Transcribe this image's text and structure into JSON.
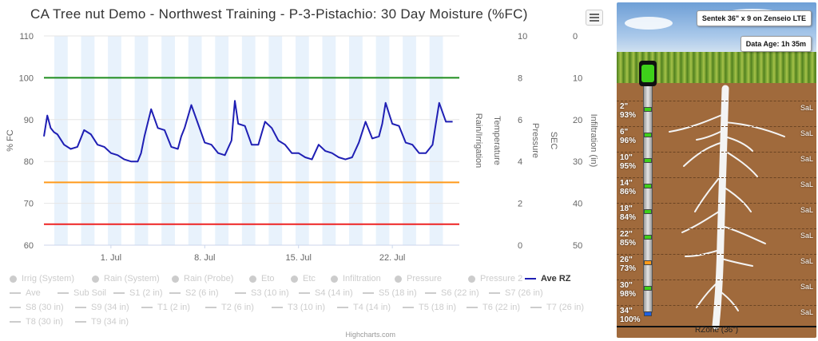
{
  "title": "CA Tree nut Demo - Northwest Training - P-3-Pistachio: 30 Day Moisture (%FC)",
  "credits": "Highcharts.com",
  "chart_data": {
    "type": "line",
    "title": "CA Tree nut Demo - Northwest Training - P-3-Pistachio: 30 Day Moisture (%FC)",
    "x_axis": {
      "type": "datetime",
      "tick_labels": [
        "1. Jul",
        "8. Jul",
        "15. Jul",
        "22. Jul"
      ],
      "tick_dates": [
        "2019-07-01",
        "2019-07-08",
        "2019-07-15",
        "2019-07-22"
      ],
      "range": [
        "2019-06-26",
        "2019-07-27"
      ]
    },
    "y_axes": [
      {
        "label": "% FC",
        "ticks": [
          60,
          70,
          80,
          90,
          100,
          110
        ],
        "range": [
          60,
          110
        ]
      },
      {
        "label": "Rain/Irrigation",
        "ticks": [
          0,
          2,
          4,
          6,
          8,
          10
        ],
        "range": [
          0,
          10
        ]
      },
      {
        "label": "Temperature",
        "ticks": [],
        "range": null
      },
      {
        "label": "Pressure",
        "ticks": [],
        "range": null
      },
      {
        "label": "SEC",
        "ticks": [],
        "range": null
      },
      {
        "label": "Infiltration (in)",
        "ticks": [
          0,
          10,
          20,
          30,
          40,
          50
        ],
        "range": [
          0,
          50
        ],
        "reversed": true
      }
    ],
    "plot_lines": [
      {
        "value": 100,
        "color": "#1e8c1e"
      },
      {
        "value": 75,
        "color": "#ff9a1a"
      },
      {
        "value": 65,
        "color": "#ee2222"
      }
    ],
    "series": [
      {
        "name": "Ave RZ",
        "color": "#1f1fb4",
        "x": [
          "2019-06-26 00:00",
          "2019-06-26 06:00",
          "2019-06-26 12:00",
          "2019-06-26 18:00",
          "2019-06-27 00:00",
          "2019-06-27 12:00",
          "2019-06-28 00:00",
          "2019-06-28 12:00",
          "2019-06-29 00:00",
          "2019-06-29 12:00",
          "2019-06-30 00:00",
          "2019-06-30 12:00",
          "2019-07-01 00:00",
          "2019-07-01 12:00",
          "2019-07-02 00:00",
          "2019-07-02 12:00",
          "2019-07-03 00:00",
          "2019-07-03 06:00",
          "2019-07-03 12:00",
          "2019-07-04 00:00",
          "2019-07-04 12:00",
          "2019-07-05 00:00",
          "2019-07-05 12:00",
          "2019-07-06 00:00",
          "2019-07-06 06:00",
          "2019-07-06 12:00",
          "2019-07-07 00:00",
          "2019-07-07 12:00",
          "2019-07-08 00:00",
          "2019-07-08 12:00",
          "2019-07-09 00:00",
          "2019-07-09 12:00",
          "2019-07-10 00:00",
          "2019-07-10 06:00",
          "2019-07-10 12:00",
          "2019-07-11 00:00",
          "2019-07-11 12:00",
          "2019-07-12 00:00",
          "2019-07-12 12:00",
          "2019-07-13 00:00",
          "2019-07-13 12:00",
          "2019-07-14 00:00",
          "2019-07-14 12:00",
          "2019-07-15 00:00",
          "2019-07-15 12:00",
          "2019-07-16 00:00",
          "2019-07-16 12:00",
          "2019-07-17 00:00",
          "2019-07-17 12:00",
          "2019-07-18 00:00",
          "2019-07-18 12:00",
          "2019-07-19 00:00",
          "2019-07-19 12:00",
          "2019-07-20 00:00",
          "2019-07-20 12:00",
          "2019-07-21 00:00",
          "2019-07-21 06:00",
          "2019-07-21 12:00",
          "2019-07-22 00:00",
          "2019-07-22 12:00",
          "2019-07-23 00:00",
          "2019-07-23 12:00",
          "2019-07-24 00:00",
          "2019-07-24 12:00",
          "2019-07-25 00:00",
          "2019-07-25 06:00",
          "2019-07-25 12:00",
          "2019-07-26 00:00",
          "2019-07-26 12:00"
        ],
        "y": [
          86,
          91,
          88,
          87,
          86.5,
          84,
          83,
          83.5,
          87.5,
          86.5,
          84,
          83.5,
          82,
          81.5,
          80.5,
          80,
          80,
          82,
          86,
          92.5,
          88,
          87.5,
          83.5,
          83,
          86,
          88,
          93.5,
          89,
          84.5,
          84,
          82,
          81.5,
          85,
          94.5,
          89,
          88.5,
          84,
          84,
          89.5,
          88,
          85,
          84,
          82,
          82,
          81,
          80.5,
          84,
          82.5,
          82,
          81,
          80.5,
          81,
          84.5,
          89.5,
          85.5,
          86,
          89,
          94,
          89,
          88.5,
          84.5,
          84,
          82,
          82,
          84,
          89,
          94,
          89.5,
          89.5
        ]
      }
    ],
    "legend": {
      "placement": "bottom",
      "items": [
        {
          "name": "Irrig (System)",
          "symbol": "dot",
          "active": false
        },
        {
          "name": "Rain (System)",
          "symbol": "dot",
          "active": false
        },
        {
          "name": "Rain (Probe)",
          "symbol": "dot",
          "active": false
        },
        {
          "name": "Eto",
          "symbol": "dot",
          "active": false
        },
        {
          "name": "Etc",
          "symbol": "dot",
          "active": false
        },
        {
          "name": "Infiltration",
          "symbol": "dot",
          "active": false
        },
        {
          "name": "Pressure",
          "symbol": "dot",
          "active": false
        },
        {
          "name": "Pressure 2",
          "symbol": "dot",
          "active": false
        },
        {
          "name": "Ave RZ",
          "symbol": "line",
          "active": true
        },
        {
          "name": "Ave",
          "symbol": "line",
          "active": false
        },
        {
          "name": "Sub Soil",
          "symbol": "line",
          "active": false
        },
        {
          "name": "S1 (2 in)",
          "symbol": "line",
          "active": false
        },
        {
          "name": "S2 (6 in)",
          "symbol": "line",
          "active": false
        },
        {
          "name": "S3 (10 in)",
          "symbol": "line",
          "active": false
        },
        {
          "name": "S4 (14 in)",
          "symbol": "line",
          "active": false
        },
        {
          "name": "S5 (18 in)",
          "symbol": "line",
          "active": false
        },
        {
          "name": "S6 (22 in)",
          "symbol": "line",
          "active": false
        },
        {
          "name": "S7 (26 in)",
          "symbol": "line",
          "active": false
        },
        {
          "name": "S8 (30 in)",
          "symbol": "line",
          "active": false
        },
        {
          "name": "S9 (34 in)",
          "symbol": "line",
          "active": false
        },
        {
          "name": "T1 (2 in)",
          "symbol": "line",
          "active": false
        },
        {
          "name": "T2 (6 in)",
          "symbol": "line",
          "active": false
        },
        {
          "name": "T3 (10 in)",
          "symbol": "line",
          "active": false
        },
        {
          "name": "T4 (14 in)",
          "symbol": "line",
          "active": false
        },
        {
          "name": "T5 (18 in)",
          "symbol": "line",
          "active": false
        },
        {
          "name": "T6 (22 in)",
          "symbol": "line",
          "active": false
        },
        {
          "name": "T7 (26 in)",
          "symbol": "line",
          "active": false
        },
        {
          "name": "T8 (30 in)",
          "symbol": "line",
          "active": false
        },
        {
          "name": "T9 (34 in)",
          "symbol": "line",
          "active": false
        }
      ]
    },
    "grid": true
  },
  "probe": {
    "title": "Sentek 36\" x 9 on Zenseio LTE",
    "data_age": "Data Age: 1h 35m",
    "sensors": [
      {
        "depth": "2\"",
        "value": "93%",
        "soil": "SaL",
        "color": "#3ed01a"
      },
      {
        "depth": "6\"",
        "value": "96%",
        "soil": "SaL",
        "color": "#3ed01a"
      },
      {
        "depth": "10\"",
        "value": "95%",
        "soil": "SaL",
        "color": "#3ed01a"
      },
      {
        "depth": "14\"",
        "value": "86%",
        "soil": "SaL",
        "color": "#3ed01a"
      },
      {
        "depth": "18\"",
        "value": "84%",
        "soil": "SaL",
        "color": "#3ed01a"
      },
      {
        "depth": "22\"",
        "value": "85%",
        "soil": "SaL",
        "color": "#3ed01a"
      },
      {
        "depth": "26\"",
        "value": "73%",
        "soil": "SaL",
        "color": "#ff9a1a"
      },
      {
        "depth": "30\"",
        "value": "98%",
        "soil": "SaL",
        "color": "#3ed01a"
      },
      {
        "depth": "34\"",
        "value": "100%",
        "soil": "SaL",
        "color": "#1f5fe0"
      }
    ],
    "rzone": "RZone (36\")"
  }
}
